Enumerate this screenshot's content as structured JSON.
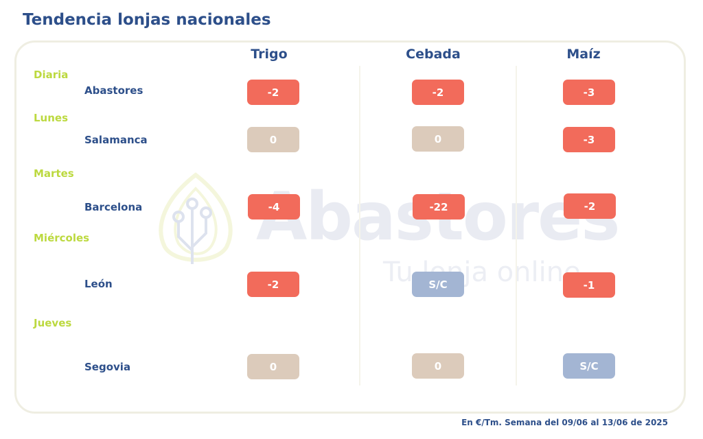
{
  "title": "Tendencia lonjas nacionales",
  "columns": [
    "Trigo",
    "Cebada",
    "Maíz"
  ],
  "groups": [
    {
      "day": "Diaria",
      "market": "Abastores",
      "values": [
        "-2",
        "-2",
        "-3"
      ]
    },
    {
      "day": "Lunes",
      "market": "Salamanca",
      "values": [
        "0",
        "0",
        "-3"
      ]
    },
    {
      "day": "Martes",
      "market": "Barcelona",
      "values": [
        "-4",
        "-22",
        "-2"
      ]
    },
    {
      "day": "Miércoles",
      "market": "León",
      "values": [
        "-2",
        "S/C",
        "-1"
      ]
    },
    {
      "day": "Jueves",
      "market": "Segovia",
      "values": [
        "0",
        "0",
        "S/C"
      ]
    }
  ],
  "watermark": {
    "brand": "Abastores",
    "tagline": "Tu lonja online"
  },
  "footer": "En €/Tm. Semana del 09/06 al 13/06 de 2025",
  "colors": {
    "negative": "#f26b5b",
    "zero": "#dccbbb",
    "no_quote": "#a3b5d3",
    "title": "#2d4f8a",
    "day": "#bcd93f"
  }
}
